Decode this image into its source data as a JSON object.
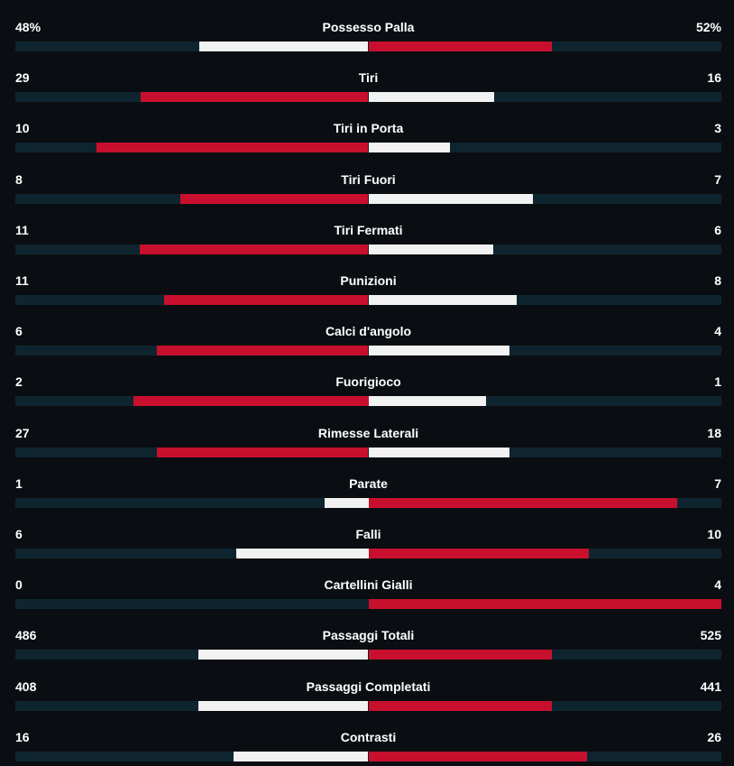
{
  "colors": {
    "background": "#0a0e12",
    "track": "#0e2530",
    "home_bar": "#f2f2f2",
    "away_bar": "#c8102e"
  },
  "stats": [
    {
      "label": "Possesso Palla",
      "home": "48%",
      "away": "52%",
      "home_value": 48,
      "away_value": 52,
      "bar_left_color": "white",
      "bar_right_color": "red"
    },
    {
      "label": "Tiri",
      "home": "29",
      "away": "16",
      "home_value": 29,
      "away_value": 16,
      "bar_left_color": "red",
      "bar_right_color": "white"
    },
    {
      "label": "Tiri in Porta",
      "home": "10",
      "away": "3",
      "home_value": 10,
      "away_value": 3,
      "bar_left_color": "red",
      "bar_right_color": "white"
    },
    {
      "label": "Tiri Fuori",
      "home": "8",
      "away": "7",
      "home_value": 8,
      "away_value": 7,
      "bar_left_color": "red",
      "bar_right_color": "white"
    },
    {
      "label": "Tiri Fermati",
      "home": "11",
      "away": "6",
      "home_value": 11,
      "away_value": 6,
      "bar_left_color": "red",
      "bar_right_color": "white"
    },
    {
      "label": "Punizioni",
      "home": "11",
      "away": "8",
      "home_value": 11,
      "away_value": 8,
      "bar_left_color": "red",
      "bar_right_color": "white"
    },
    {
      "label": "Calci d'angolo",
      "home": "6",
      "away": "4",
      "home_value": 6,
      "away_value": 4,
      "bar_left_color": "red",
      "bar_right_color": "white"
    },
    {
      "label": "Fuorigioco",
      "home": "2",
      "away": "1",
      "home_value": 2,
      "away_value": 1,
      "bar_left_color": "red",
      "bar_right_color": "white"
    },
    {
      "label": "Rimesse Laterali",
      "home": "27",
      "away": "18",
      "home_value": 27,
      "away_value": 18,
      "bar_left_color": "red",
      "bar_right_color": "white"
    },
    {
      "label": "Parate",
      "home": "1",
      "away": "7",
      "home_value": 1,
      "away_value": 7,
      "bar_left_color": "white",
      "bar_right_color": "red"
    },
    {
      "label": "Falli",
      "home": "6",
      "away": "10",
      "home_value": 6,
      "away_value": 10,
      "bar_left_color": "white",
      "bar_right_color": "red"
    },
    {
      "label": "Cartellini Gialli",
      "home": "0",
      "away": "4",
      "home_value": 0,
      "away_value": 4,
      "bar_left_color": "white",
      "bar_right_color": "red"
    },
    {
      "label": "Passaggi Totali",
      "home": "486",
      "away": "525",
      "home_value": 486,
      "away_value": 525,
      "bar_left_color": "white",
      "bar_right_color": "red"
    },
    {
      "label": "Passaggi Completati",
      "home": "408",
      "away": "441",
      "home_value": 408,
      "away_value": 441,
      "bar_left_color": "white",
      "bar_right_color": "red"
    },
    {
      "label": "Contrasti",
      "home": "16",
      "away": "26",
      "home_value": 16,
      "away_value": 26,
      "bar_left_color": "white",
      "bar_right_color": "red"
    }
  ]
}
